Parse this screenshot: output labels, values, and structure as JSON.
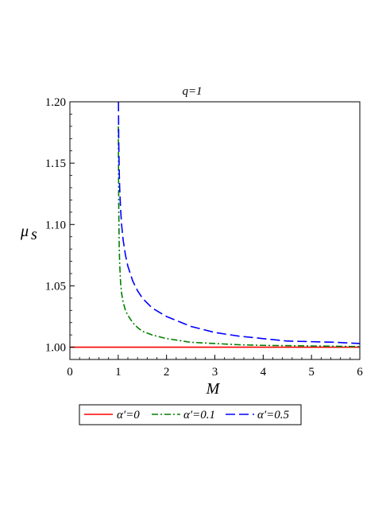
{
  "chart_data": {
    "type": "line",
    "title": "q=1",
    "xlabel": "M",
    "ylabel_main": "μ",
    "ylabel_sub": "s",
    "xlim": [
      0,
      6
    ],
    "ylim": [
      0.99,
      1.2
    ],
    "xticks": [
      "0",
      "1",
      "2",
      "3",
      "4",
      "5",
      "6"
    ],
    "yticks": [
      "1.00",
      "1.05",
      "1.10",
      "1.15",
      "1.20"
    ],
    "grid": false,
    "legend_position": "bottom",
    "series": [
      {
        "name": "α′=0",
        "color": "#ff0000",
        "dash": "solid",
        "x": [
          0,
          6
        ],
        "y": [
          1.0,
          1.0
        ]
      },
      {
        "name": "α′=0.1",
        "color": "#008000",
        "dash": "dashdot",
        "x": [
          1.002,
          1.01,
          1.02,
          1.03,
          1.05,
          1.07,
          1.1,
          1.15,
          1.2,
          1.3,
          1.4,
          1.5,
          1.7,
          2.0,
          2.5,
          3.0,
          3.5,
          4.0,
          5.0,
          6.0
        ],
        "y": [
          1.18,
          1.118,
          1.083,
          1.068,
          1.052,
          1.044,
          1.037,
          1.03,
          1.026,
          1.02,
          1.016,
          1.013,
          1.01,
          1.007,
          1.004,
          1.003,
          1.002,
          1.0015,
          1.001,
          1.0005
        ]
      },
      {
        "name": "α′=0.5",
        "color": "#0000ff",
        "dash": "longdash",
        "x": [
          1.005,
          1.01,
          1.02,
          1.03,
          1.05,
          1.07,
          1.1,
          1.15,
          1.2,
          1.3,
          1.4,
          1.5,
          1.7,
          2.0,
          2.5,
          3.0,
          3.5,
          4.0,
          4.5,
          5.0,
          5.5,
          6.0
        ],
        "y": [
          1.2,
          1.17,
          1.145,
          1.13,
          1.112,
          1.1,
          1.088,
          1.075,
          1.066,
          1.054,
          1.046,
          1.04,
          1.032,
          1.025,
          1.017,
          1.012,
          1.009,
          1.007,
          1.005,
          1.0045,
          1.004,
          1.003
        ]
      }
    ]
  }
}
